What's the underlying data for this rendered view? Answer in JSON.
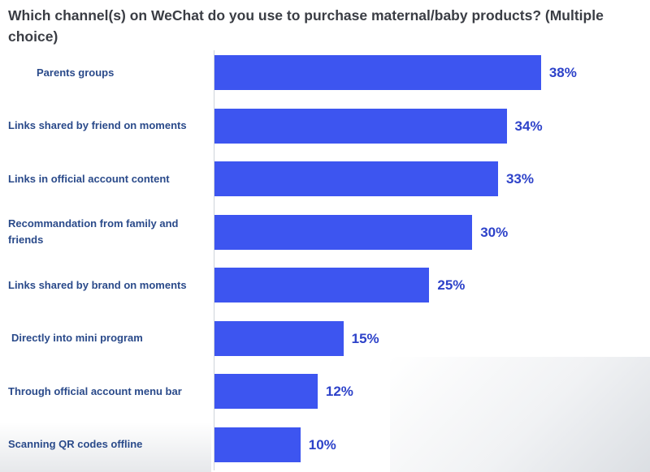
{
  "title": "Which channel(s) on WeChat do you use to purchase maternal/baby products? (Multiple choice)",
  "chart_data": {
    "type": "bar",
    "orientation": "horizontal",
    "title": "Which channel(s) on WeChat do you use to purchase maternal/baby products? (Multiple choice)",
    "categories": [
      "Parents groups",
      "Links shared by friend on moments",
      "Links in official account content",
      "Recommandation from family and friends",
      "Links shared by brand on moments",
      "Directly into mini program",
      "Through official account menu bar",
      "Scanning QR codes offline"
    ],
    "values": [
      38,
      34,
      33,
      30,
      25,
      15,
      12,
      10
    ],
    "value_labels": [
      "38%",
      "34%",
      "33%",
      "30%",
      "25%",
      "15%",
      "12%",
      "10%"
    ],
    "unit": "%",
    "xlim": [
      0,
      47
    ],
    "grid": false,
    "legend": "none",
    "bar_color": "#3d55f0",
    "label_color": "#2a4a8a",
    "value_color": "#2d42c9"
  }
}
